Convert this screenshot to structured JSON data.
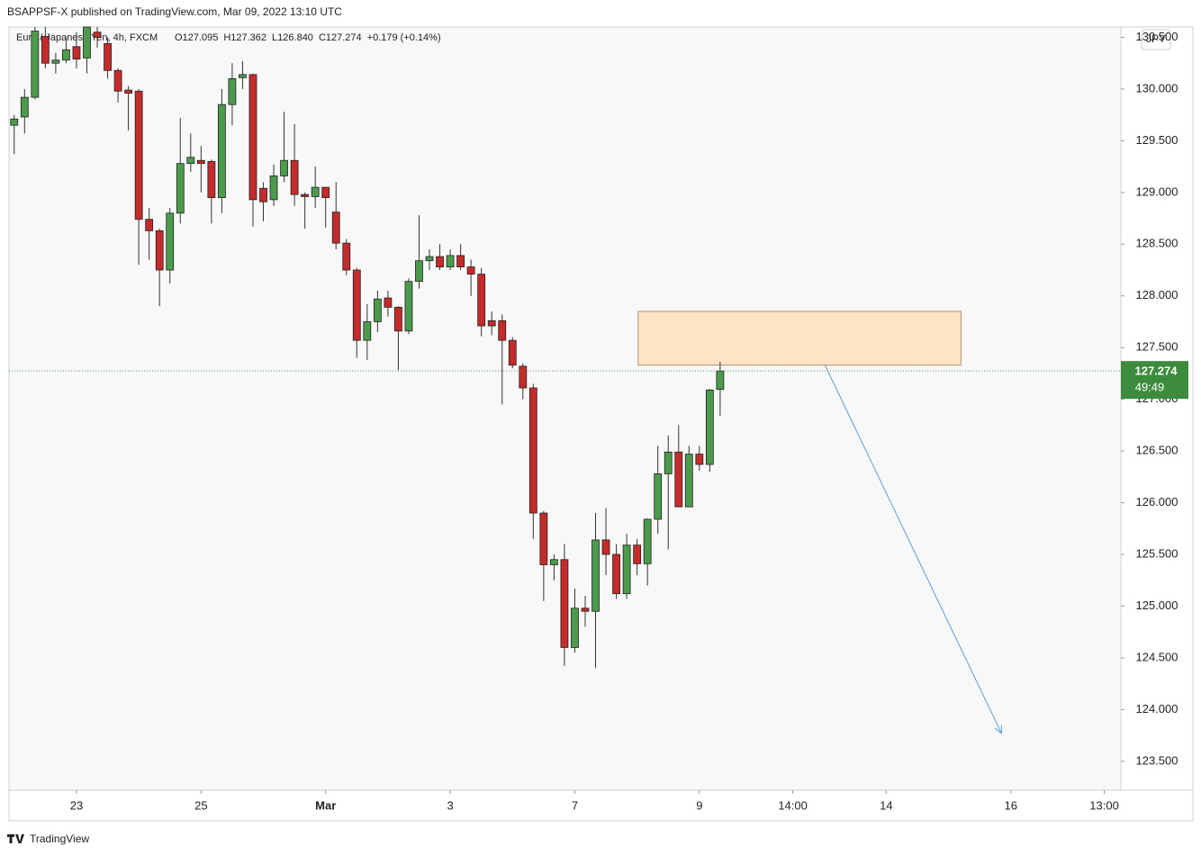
{
  "chart_data": {
    "type": "candlestick",
    "header": "BSAPPSF-X published on TradingView.com, Mar 09, 2022 13:10 UTC",
    "title": "Euro / Japanese Yen, 4h, FXCM",
    "legend_values": [
      "O127.095",
      "H127.362",
      "L126.840",
      "C127.274",
      "+0.179 (+0.14%)"
    ],
    "currency": "JPY",
    "price_label": "127.274",
    "countdown": "49:49",
    "brand": "TradingView",
    "up_color": "#4c9a4c",
    "down_color": "#c42b2b",
    "x": [
      0,
      1,
      2,
      3,
      4,
      5,
      6,
      7,
      8,
      9,
      10,
      11,
      12,
      13,
      14,
      15,
      16,
      17,
      18,
      19,
      20,
      21,
      22,
      23,
      24,
      25,
      26,
      27,
      28,
      29,
      30,
      31,
      32,
      33,
      34,
      35,
      36,
      37,
      38,
      39,
      40,
      41,
      42,
      43,
      44,
      45,
      46,
      47,
      48,
      49,
      50,
      51,
      52,
      53,
      54,
      55,
      56,
      57,
      58,
      59,
      60,
      61,
      62,
      63,
      64,
      65,
      66,
      67,
      68
    ],
    "open": [
      129.65,
      129.73,
      129.92,
      130.51,
      130.25,
      130.28,
      130.41,
      130.3,
      130.55,
      130.44,
      130.18,
      129.99,
      129.98,
      128.74,
      128.63,
      128.25,
      128.8,
      129.28,
      129.31,
      129.3,
      128.95,
      129.85,
      130.11,
      130.14,
      129.04,
      128.93,
      129.16,
      129.31,
      128.98,
      128.96,
      129.05,
      128.81,
      128.51,
      128.25,
      127.57,
      127.75,
      127.98,
      127.89,
      127.66,
      128.14,
      128.34,
      128.38,
      128.28,
      128.39,
      128.28,
      128.21,
      127.76,
      127.76,
      127.57,
      127.32,
      127.11,
      125.9,
      125.4,
      125.45,
      124.6,
      124.98,
      124.95,
      125.64,
      125.5,
      125.12,
      125.59,
      125.41,
      125.84,
      126.28,
      126.49,
      125.96,
      126.47,
      126.37,
      127.095
    ],
    "high": [
      129.75,
      130.0,
      130.6,
      130.6,
      130.35,
      130.5,
      130.55,
      130.6,
      130.6,
      130.5,
      130.2,
      130.03,
      130.0,
      128.85,
      128.65,
      128.85,
      129.72,
      129.57,
      129.45,
      129.32,
      130.0,
      130.25,
      130.27,
      130.15,
      129.1,
      129.27,
      129.78,
      129.66,
      129.0,
      129.25,
      129.05,
      129.1,
      128.55,
      128.27,
      127.92,
      128.05,
      128.05,
      127.9,
      128.17,
      128.78,
      128.45,
      128.5,
      128.45,
      128.5,
      128.35,
      128.27,
      127.85,
      127.82,
      127.6,
      127.35,
      127.15,
      125.92,
      125.5,
      125.6,
      125.17,
      125.1,
      125.9,
      125.95,
      125.6,
      125.7,
      125.65,
      125.85,
      126.55,
      126.65,
      126.75,
      126.55,
      126.55,
      127.1,
      127.362
    ],
    "low": [
      129.37,
      129.57,
      129.9,
      130.2,
      130.15,
      130.25,
      130.2,
      130.15,
      130.4,
      130.1,
      129.87,
      129.6,
      128.3,
      128.35,
      127.9,
      128.12,
      128.7,
      129.2,
      129.0,
      128.7,
      128.8,
      129.65,
      130.0,
      128.67,
      128.72,
      128.87,
      129.1,
      128.87,
      128.65,
      128.85,
      128.66,
      128.45,
      128.2,
      127.4,
      127.38,
      127.65,
      127.8,
      127.28,
      127.63,
      128.07,
      128.25,
      128.25,
      128.25,
      128.25,
      128.0,
      127.61,
      127.62,
      126.95,
      127.3,
      127.0,
      125.65,
      125.05,
      125.25,
      124.42,
      124.55,
      124.8,
      124.4,
      125.3,
      125.07,
      125.07,
      125.3,
      125.2,
      125.7,
      125.55,
      125.96,
      125.96,
      126.31,
      126.3,
      126.84
    ],
    "close": [
      129.71,
      129.92,
      130.56,
      130.25,
      130.28,
      130.38,
      130.29,
      130.6,
      130.5,
      130.18,
      129.98,
      129.96,
      128.74,
      128.63,
      128.25,
      128.8,
      129.28,
      129.34,
      129.28,
      128.95,
      129.85,
      130.1,
      130.14,
      128.93,
      128.91,
      129.16,
      129.31,
      128.98,
      128.96,
      129.05,
      128.95,
      128.51,
      128.25,
      127.57,
      127.75,
      127.97,
      127.89,
      127.66,
      128.14,
      128.34,
      128.38,
      128.28,
      128.39,
      128.28,
      128.21,
      127.71,
      127.71,
      127.57,
      127.33,
      127.11,
      125.9,
      125.4,
      125.45,
      124.6,
      124.98,
      124.95,
      125.64,
      125.5,
      125.12,
      125.59,
      125.41,
      125.84,
      126.28,
      126.49,
      125.96,
      126.47,
      126.37,
      127.09,
      127.274
    ],
    "xlim": [
      -0.5,
      106.6
    ],
    "ylim": [
      123.22,
      130.6
    ],
    "xticks": [
      {
        "value": 6,
        "label": "23"
      },
      {
        "value": 18,
        "label": "25"
      },
      {
        "value": 30,
        "label": "Mar"
      },
      {
        "value": 42,
        "label": "3"
      },
      {
        "value": 54,
        "label": "7"
      },
      {
        "value": 66,
        "label": "9"
      },
      {
        "value": 75,
        "label": "14:00"
      },
      {
        "value": 84,
        "label": "14"
      },
      {
        "value": 96,
        "label": "16"
      },
      {
        "value": 105,
        "label": "13:00"
      }
    ],
    "yticks": [
      {
        "value": 123.5,
        "label": "123.500"
      },
      {
        "value": 124,
        "label": "124.000"
      },
      {
        "value": 124.5,
        "label": "124.500"
      },
      {
        "value": 125,
        "label": "125.000"
      },
      {
        "value": 125.5,
        "label": "125.500"
      },
      {
        "value": 126,
        "label": "126.000"
      },
      {
        "value": 126.5,
        "label": "126.500"
      },
      {
        "value": 127,
        "label": "127.000"
      },
      {
        "value": 127.5,
        "label": "127.500"
      },
      {
        "value": 128,
        "label": "128.000"
      },
      {
        "value": 128.5,
        "label": "128.500"
      },
      {
        "value": 129,
        "label": "129.000"
      },
      {
        "value": 129.5,
        "label": "129.500"
      },
      {
        "value": 130,
        "label": "130.000"
      },
      {
        "value": 130.5,
        "label": "130.500"
      }
    ],
    "zone": {
      "x": [
        60.1,
        91.2
      ],
      "y": [
        127.33,
        127.85
      ],
      "color": "#fde4c6"
    },
    "arrow": {
      "x": [
        78.1,
        95.1
      ],
      "y": [
        127.33,
        123.77
      ],
      "color": "#5b9bd5"
    }
  }
}
